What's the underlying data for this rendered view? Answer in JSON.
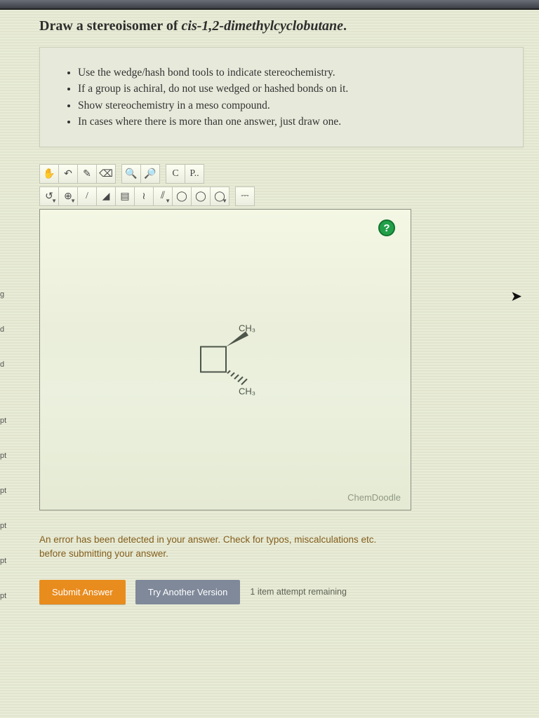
{
  "question": {
    "prompt_prefix": "Draw a stereoisomer of ",
    "compound": "cis-1,2-dimethylcyclobutane",
    "prompt_suffix": "."
  },
  "instructions": [
    "Use the wedge/hash bond tools to indicate stereochemistry.",
    "If a group is achiral, do not use wedged or hashed bonds on it.",
    "Show stereochemistry in a meso compound.",
    "In cases where there is more than one answer, just draw one."
  ],
  "toolbar1": [
    {
      "name": "hand-icon",
      "glyph": "✋"
    },
    {
      "name": "undo-icon",
      "glyph": "↶"
    },
    {
      "name": "pencil-icon",
      "glyph": "✎"
    },
    {
      "name": "eraser-icon",
      "glyph": "⌫"
    },
    {
      "name": "sep"
    },
    {
      "name": "zoom-in-icon",
      "glyph": "🔍"
    },
    {
      "name": "zoom-out-icon",
      "glyph": "🔎"
    },
    {
      "name": "sep"
    },
    {
      "name": "carbon-label",
      "glyph": "C"
    },
    {
      "name": "periodic-icon",
      "glyph": "P.."
    }
  ],
  "toolbar2": [
    {
      "name": "lasso-icon",
      "glyph": "↺",
      "dropdown": true
    },
    {
      "name": "charge-icon",
      "glyph": "⊕",
      "dropdown": true
    },
    {
      "name": "single-bond-icon",
      "glyph": "/"
    },
    {
      "name": "wedge-bond-icon",
      "glyph": "◢"
    },
    {
      "name": "hash-bond-icon",
      "glyph": "▤"
    },
    {
      "name": "wavy-bond-icon",
      "glyph": "≀"
    },
    {
      "name": "double-bond-icon",
      "glyph": "⫽",
      "dropdown": true
    },
    {
      "name": "cyclopropane-icon",
      "glyph": "◯"
    },
    {
      "name": "cyclobutane-icon",
      "glyph": "◯"
    },
    {
      "name": "cyclopentane-icon",
      "glyph": "◯",
      "dropdown": true
    },
    {
      "name": "sep"
    },
    {
      "name": "fragment-icon",
      "glyph": "⎓"
    }
  ],
  "molecule": {
    "label_top": "CH₃",
    "label_bottom": "CH₃",
    "ring_size": 36,
    "bond_color": "#4b5247",
    "label_color": "#4b5247"
  },
  "canvas": {
    "help_glyph": "?",
    "watermark": "ChemDoodle"
  },
  "error": "An error has been detected in your answer. Check for typos, miscalculations etc. before submitting your answer.",
  "buttons": {
    "submit": "Submit Answer",
    "try_another": "Try Another Version"
  },
  "attempts_text": "1 item attempt remaining",
  "side_ticks": [
    "g",
    "d",
    "d",
    "pt",
    "pt",
    "pt",
    "pt",
    "pt",
    "pt"
  ],
  "colors": {
    "primary_btn": "#e88a1a",
    "secondary_btn": "#7c8798",
    "help_badge": "#1e9e46"
  }
}
